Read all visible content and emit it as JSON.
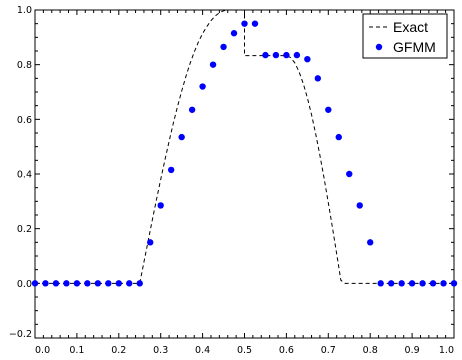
{
  "chart_data": {
    "type": "line",
    "title": "",
    "xlabel": "",
    "ylabel": "",
    "xlim": [
      0.0,
      1.0
    ],
    "ylim": [
      -0.2,
      1.0
    ],
    "x_ticks": [
      "0.0",
      "0.1",
      "0.2",
      "0.3",
      "0.4",
      "0.5",
      "0.6",
      "0.7",
      "0.8",
      "0.9",
      "1.0"
    ],
    "y_ticks": [
      "−0.2",
      "0.0",
      "0.2",
      "0.4",
      "0.6",
      "0.8",
      "1.0"
    ],
    "grid": false,
    "legend_position": "top-right",
    "series": [
      {
        "name": "Exact",
        "style": "dashed-line",
        "color": "#000000",
        "x": [
          0.0,
          0.25,
          0.26,
          0.27,
          0.28,
          0.29,
          0.3,
          0.31,
          0.32,
          0.33,
          0.34,
          0.35,
          0.36,
          0.37,
          0.38,
          0.39,
          0.4,
          0.41,
          0.42,
          0.43,
          0.44,
          0.45,
          0.46,
          0.47,
          0.48,
          0.49,
          0.5,
          0.5,
          0.6,
          0.61,
          0.62,
          0.63,
          0.64,
          0.65,
          0.66,
          0.67,
          0.68,
          0.69,
          0.7,
          0.71,
          0.72,
          0.73,
          0.74,
          0.75,
          0.75,
          1.0
        ],
        "y": [
          0.0,
          0.0,
          0.078,
          0.155,
          0.232,
          0.307,
          0.38,
          0.451,
          0.519,
          0.585,
          0.646,
          0.703,
          0.756,
          0.804,
          0.846,
          0.883,
          0.914,
          0.939,
          0.961,
          0.978,
          0.99,
          0.997,
          1.0,
          1.0,
          1.0,
          1.0,
          1.0,
          0.833,
          0.833,
          0.826,
          0.807,
          0.775,
          0.732,
          0.679,
          0.617,
          0.546,
          0.468,
          0.384,
          0.295,
          0.203,
          0.108,
          0.011,
          0.0,
          0.0,
          0.0,
          0.0
        ]
      },
      {
        "name": "GFMM",
        "style": "markers",
        "color": "#0000ff",
        "x": [
          0.0,
          0.025,
          0.05,
          0.075,
          0.1,
          0.125,
          0.15,
          0.175,
          0.2,
          0.225,
          0.25,
          0.275,
          0.3,
          0.325,
          0.35,
          0.375,
          0.4,
          0.425,
          0.45,
          0.475,
          0.5,
          0.525,
          0.55,
          0.575,
          0.6,
          0.625,
          0.65,
          0.675,
          0.7,
          0.725,
          0.75,
          0.775,
          0.8,
          0.825,
          0.85,
          0.875,
          0.9,
          0.925,
          0.95,
          0.975,
          1.0
        ],
        "y": [
          0.0,
          0.0,
          0.0,
          0.0,
          0.0,
          0.0,
          0.0,
          0.0,
          0.0,
          0.0,
          0.0,
          0.15,
          0.285,
          0.415,
          0.535,
          0.635,
          0.72,
          0.8,
          0.865,
          0.915,
          0.95,
          0.95,
          0.835,
          0.835,
          0.835,
          0.835,
          0.82,
          0.75,
          0.635,
          0.535,
          0.4,
          0.285,
          0.15,
          0.0,
          0.0,
          0.0,
          0.0,
          0.0,
          0.0,
          0.0,
          0.0
        ]
      }
    ]
  }
}
